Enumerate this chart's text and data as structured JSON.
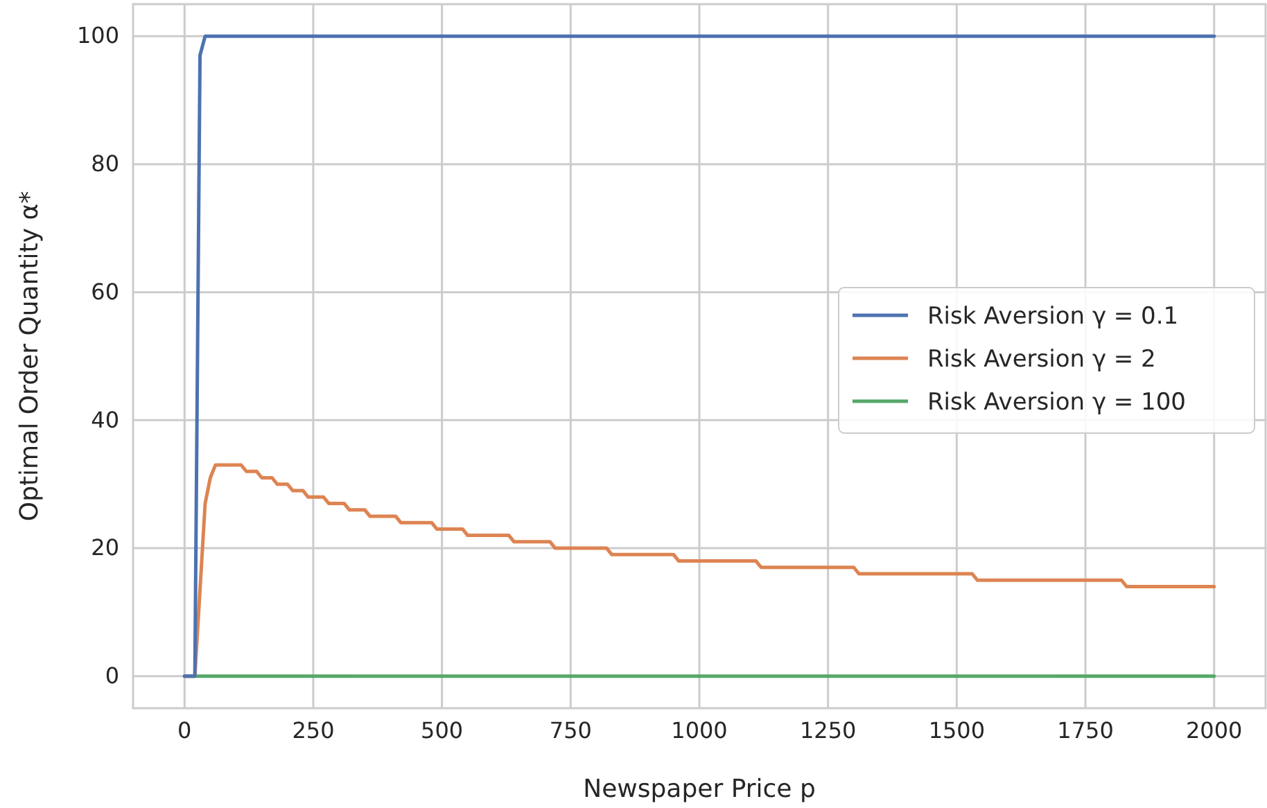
{
  "chart_data": {
    "type": "line",
    "xlabel": "Newspaper Price p",
    "ylabel": "Optimal Order Quantity α*",
    "xlim": [
      -100,
      2100
    ],
    "ylim": [
      -5,
      105
    ],
    "xticks": [
      0,
      250,
      500,
      750,
      1000,
      1250,
      1500,
      1750,
      2000
    ],
    "yticks": [
      0,
      20,
      40,
      60,
      80,
      100
    ],
    "grid": true,
    "legend": "right",
    "line_style": "solid",
    "marker": "none",
    "series": [
      {
        "name": "Risk Aversion γ = 0.1",
        "color": "#4c72b0",
        "x": [
          0,
          20,
          30,
          40,
          2000
        ],
        "values": [
          0,
          0,
          97,
          100,
          100
        ]
      },
      {
        "name": "Risk Aversion γ = 2",
        "color": "#dd8452",
        "x": [
          0,
          20,
          40,
          50,
          60,
          110,
          120,
          140,
          150,
          170,
          180,
          200,
          210,
          230,
          240,
          270,
          280,
          310,
          320,
          350,
          360,
          410,
          420,
          480,
          490,
          540,
          550,
          630,
          640,
          710,
          720,
          820,
          830,
          950,
          960,
          1110,
          1120,
          1300,
          1310,
          1530,
          1540,
          1820,
          1830,
          2000
        ],
        "values": [
          0,
          0,
          27,
          31,
          33,
          33,
          32,
          32,
          31,
          31,
          30,
          30,
          29,
          29,
          28,
          28,
          27,
          27,
          26,
          26,
          25,
          25,
          24,
          24,
          23,
          23,
          22,
          22,
          21,
          21,
          20,
          20,
          19,
          19,
          18,
          18,
          17,
          17,
          16,
          16,
          15,
          15,
          14,
          14
        ]
      },
      {
        "name": "Risk Aversion γ = 100",
        "color": "#55a868",
        "x": [
          0,
          2000
        ],
        "values": [
          0,
          0
        ]
      }
    ]
  }
}
